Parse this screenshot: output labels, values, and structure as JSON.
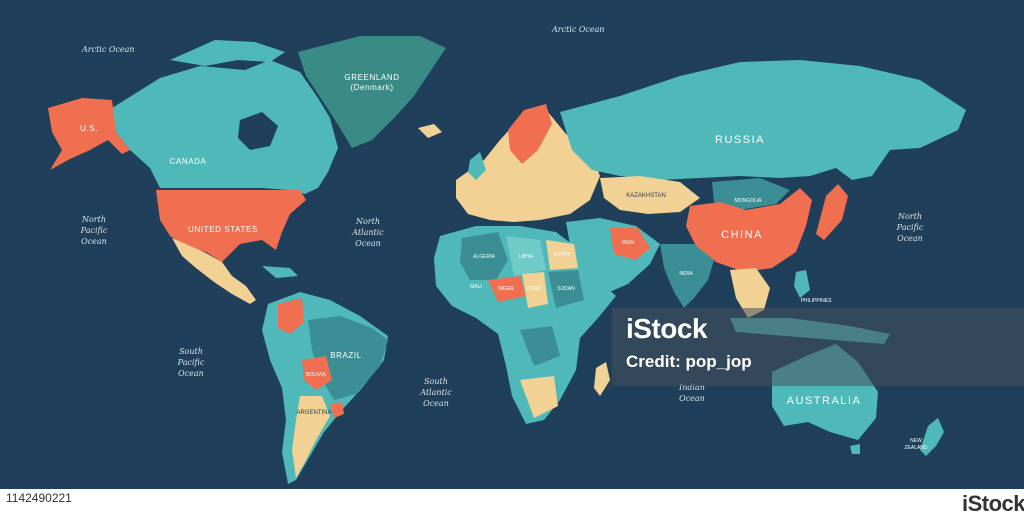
{
  "map": {
    "palette": {
      "ocean": "#1f3f5a",
      "teal": "#4fb8b8",
      "light_teal": "#6ecbc8",
      "dark_teal": "#3c8e95",
      "coral": "#ef6f50",
      "sand": "#f2d194",
      "greenland": "#3a8a86"
    },
    "oceans": {
      "arctic_left": "Arctic Ocean",
      "arctic_top": "Arctic Ocean",
      "north_pacific": [
        "North",
        "Pacific",
        "Ocean"
      ],
      "north_pacific_right": [
        "North",
        "Pacific",
        "Ocean"
      ],
      "north_atlantic": [
        "North",
        "Atlantic",
        "Ocean"
      ],
      "south_pacific": [
        "South",
        "Pacific",
        "Ocean"
      ],
      "south_atlantic": [
        "South",
        "Atlantic",
        "Ocean"
      ],
      "indian": [
        "Indian",
        "Ocean"
      ]
    },
    "countries": {
      "us_alaska": "U.S.",
      "canada": "CANADA",
      "united_states": "UNITED STATES",
      "greenland": [
        "GREENLAND",
        "(Denmark)"
      ],
      "russia": "RUSSIA",
      "china": "CHINA",
      "india": "INDIA",
      "mongolia": "MONGOLIA",
      "kazakhstan": "KAZAKHSTAN",
      "brazil": "BRAZIL",
      "bolivia": "BOLIVIA",
      "argentina": "ARGENTINA",
      "australia": "AUSTRALIA",
      "algeria": "ALGERIA",
      "libya": "LIBYA",
      "niger": "NIGER",
      "chad": "CHAD",
      "mali": "MALI",
      "sudan": "SUDAN",
      "egypt": "EGYPT",
      "iran": "IRAN",
      "philippines": "PHILIPPINES",
      "new_zealand": [
        "NEW",
        "ZEALAND"
      ]
    }
  },
  "watermark": {
    "logo": "iStock",
    "credit": "Credit: pop_jop"
  },
  "footer": {
    "image_id": "1142490221",
    "logo": "iStock"
  }
}
